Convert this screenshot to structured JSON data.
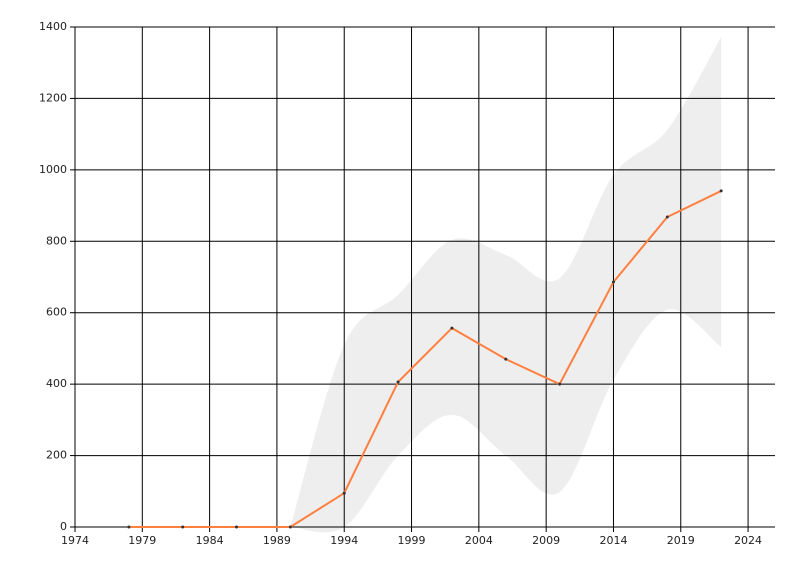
{
  "chart_data": {
    "type": "line",
    "x": [
      1978,
      1982,
      1986,
      1990,
      1994,
      1998,
      2002,
      2006,
      2010,
      2014,
      2018,
      2022
    ],
    "series": [
      {
        "color": "#ff7f3f",
        "values": [
          0,
          0,
          0,
          0,
          95,
          406,
          557,
          470,
          400,
          686,
          868,
          941
        ]
      }
    ],
    "band": {
      "color": "#eeeeee",
      "upper": [
        null,
        null,
        null,
        0,
        510,
        650,
        804,
        762,
        697,
        986,
        1112,
        1372
      ],
      "lower": [
        null,
        null,
        null,
        0,
        0,
        200,
        314,
        200,
        98,
        412,
        608,
        504
      ]
    },
    "xlim": [
      1974,
      2026
    ],
    "xticks": [
      1974,
      1979,
      1984,
      1989,
      1994,
      1999,
      2004,
      2009,
      2014,
      2019,
      2024
    ],
    "ylim": [
      0,
      1400
    ],
    "yticks": [
      0,
      200,
      400,
      600,
      800,
      1000,
      1200,
      1400
    ],
    "grid": true,
    "grid_color": "#000000"
  }
}
